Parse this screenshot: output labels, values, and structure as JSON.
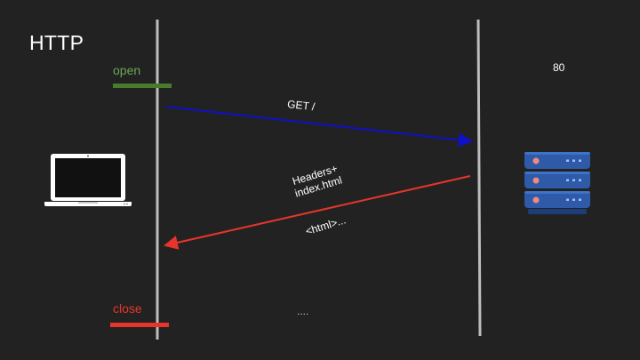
{
  "slide": {
    "title": "HTTP",
    "open_label": "open",
    "close_label": "close",
    "port_label": "80",
    "request_label": "GET /",
    "response_line1": "Headers+",
    "response_line2": "index.html",
    "body_label": "<html>...",
    "ellipsis_label": "...."
  },
  "colors": {
    "background": "#222222",
    "open": "#4a7a2c",
    "close": "#e8352b",
    "request_arrow": "#1010c8",
    "response_arrow": "#e8352b",
    "lifeline": "#bdbdbd",
    "server_unit": "#2e5aa8"
  },
  "icons": {
    "client": "laptop-icon",
    "server": "server-rack-icon"
  }
}
